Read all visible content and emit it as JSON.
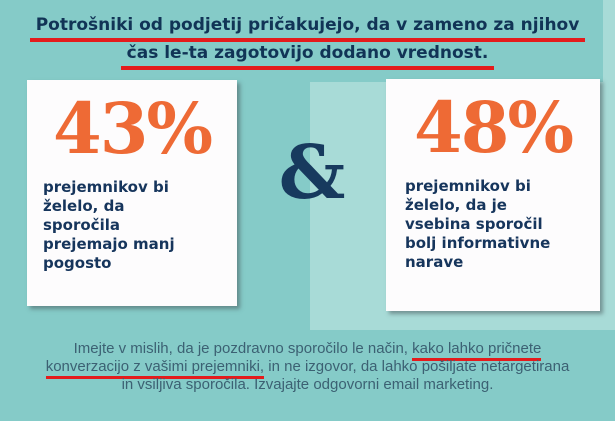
{
  "title": {
    "line1": "Potrošniki od podjetij pričakujejo, da v zameno za njihov",
    "line2": "čas le-ta zagotovijo dodano vrednost."
  },
  "ampersand": "&",
  "stats": [
    {
      "value": "43%",
      "description": "prejemnikov bi\nželelo, da\nsporočila\nprejemajo manj\npogosto"
    },
    {
      "value": "48%",
      "description": "prejemnikov bi\nželelo, da je\nvsebina sporočil\nbolj informativne\nnarave"
    }
  ],
  "footer": {
    "line1_plain": "Imejte v mislih, da je pozdravno sporočilo le način, ",
    "line1_underlined": "kako lahko pričnete",
    "line2_underlined": "konverzacijo z vašimi prejemniki,",
    "line2_plain": " in ne izgovor, da lahko pošiljate netargetirana",
    "line3": "in vsiljiva sporočila. Izvajajte odgovorni email marketing."
  },
  "colors": {
    "background_base": "#85cbc8",
    "background_light": "#a8dbd7",
    "card_background": "#fdfcfd",
    "stat_orange": "#ee6a35",
    "title_navy": "#113456",
    "card_text_navy": "#16355c",
    "ampersand_navy": "#173a5e",
    "underline_red": "#e41b1c",
    "footer_slate": "#3c6173"
  }
}
